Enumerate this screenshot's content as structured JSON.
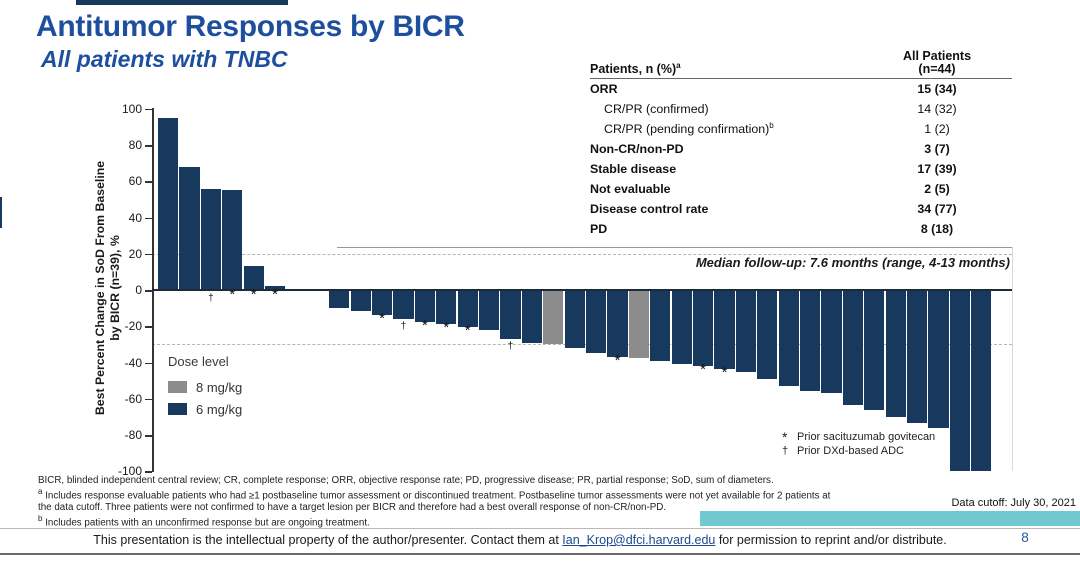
{
  "title": "Antitumor Responses by BICR",
  "subtitle": "All patients with TNBC",
  "table": {
    "header_label": "Patients, n (%)",
    "header_sup": "a",
    "header_value_line1": "All Patients",
    "header_value_line2": "(n=44)",
    "rows": [
      {
        "label": "ORR",
        "value": "15 (34)"
      },
      {
        "label": "CR/PR (confirmed)",
        "value": "14 (32)"
      },
      {
        "label": "CR/PR (pending confirmation)",
        "sup": "b",
        "value": "1 (2)"
      },
      {
        "label": "Non-CR/non-PD",
        "value": "3 (7)"
      },
      {
        "label": "Stable disease",
        "value": "17 (39)"
      },
      {
        "label": "Not evaluable",
        "value": "2 (5)"
      },
      {
        "label": "Disease control rate",
        "value": "34 (77)"
      },
      {
        "label": "PD",
        "value": "8 (18)"
      }
    ]
  },
  "median_note": "Median follow-up: 7.6 months (range, 4-13 months)",
  "chart_data": {
    "type": "bar",
    "subtype": "waterfall",
    "title": "",
    "ylabel_line1": "Best Percent Change in SoD From Baseline",
    "ylabel_line2": "by BICR (n=39), %",
    "ylim": [
      -100,
      100
    ],
    "yticks": [
      100,
      80,
      60,
      40,
      20,
      0,
      -20,
      -40,
      -60,
      -80,
      -100
    ],
    "reference_lines": [
      20,
      -30
    ],
    "values": [
      95,
      68,
      56,
      55,
      13,
      2,
      0,
      0,
      -10,
      -11.5,
      -14,
      -16,
      -17.5,
      -19,
      -20.5,
      -22,
      -27,
      -29,
      -30,
      -32,
      -34.5,
      -37,
      -37.5,
      -39,
      -41,
      -42,
      -43.5,
      -45,
      -49,
      -53,
      -55.5,
      -57,
      -63.5,
      -66,
      -70,
      -73.5,
      -76,
      -100,
      -100
    ],
    "dose_8mgkg_bar_numbers": [
      19,
      23
    ],
    "prior_sacituzumab_bar_numbers": [
      4,
      5,
      6,
      11,
      13,
      14,
      15,
      22,
      26,
      27
    ],
    "prior_dxd_adc_bar_numbers": [
      3,
      12,
      17
    ],
    "legend": {
      "title": "Dose level",
      "items": [
        {
          "label": "8 mg/kg",
          "color": "#8C8C8C"
        },
        {
          "label": "6 mg/kg",
          "color": "#17395E"
        }
      ]
    },
    "marker_legend": [
      {
        "symbol": "*",
        "label": "Prior sacituzumab govitecan"
      },
      {
        "symbol": "†",
        "label": "Prior DXd-based ADC"
      }
    ]
  },
  "footnotes": {
    "abbrev": "BICR, blinded independent central review; CR, complete response; ORR, objective response rate; PD, progressive disease; PR, partial response; SoD, sum of diameters.",
    "a_sup": "a",
    "a_text_line1": "Includes response evaluable patients who had ≥1 postbaseline tumor assessment or discontinued treatment. Postbaseline tumor assessments were not yet available for 2 patients at",
    "a_text_line2": "the data cutoff. Three patients were not confirmed to have a target lesion per BICR and therefore had a best overall response of non-CR/non-PD.",
    "b_sup": "b",
    "b_text": "Includes patients with an unconfirmed response but are ongoing treatment."
  },
  "data_cutoff": "Data cutoff: July 30, 2021",
  "footer": {
    "text_before": "This presentation is the intellectual property of the author/presenter. Contact them at ",
    "email": "Ian_Krop@dfci.harvard.edu",
    "text_after": " for permission to reprint and/or distribute.",
    "page_number": "8"
  },
  "colors": {
    "title_blue": "#1D4F9E",
    "bar_navy": "#17395E",
    "bar_gray": "#8C8C8C",
    "teal_accent": "#70C8D0"
  }
}
